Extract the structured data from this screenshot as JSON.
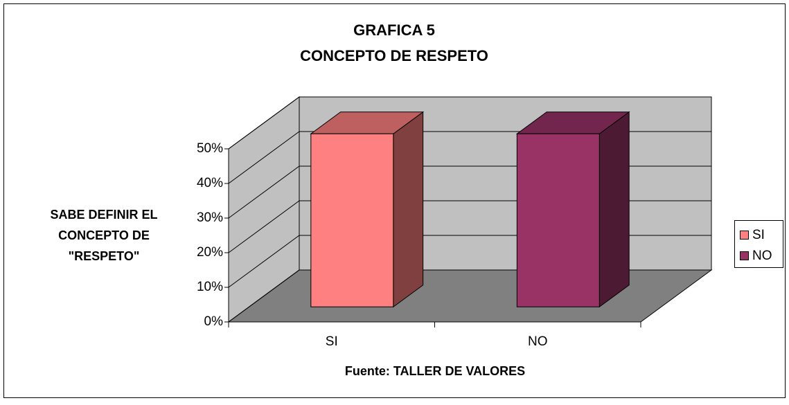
{
  "chart_data": {
    "type": "bar3d",
    "title": "GRAFICA 5",
    "subtitle": "CONCEPTO DE RESPETO",
    "ylabel": [
      "SABE DEFINIR EL",
      "CONCEPTO DE",
      "\"RESPETO\""
    ],
    "xlabel": "Fuente: TALLER DE VALORES",
    "categories": [
      "SI",
      "NO"
    ],
    "series": [
      {
        "name": "SI",
        "color": "#ff8080",
        "values": [
          50,
          null
        ]
      },
      {
        "name": "NO",
        "color": "#993366",
        "values": [
          null,
          50
        ]
      }
    ],
    "ylim": [
      0,
      50
    ],
    "yticks": [
      {
        "value": 0,
        "label": "0%"
      },
      {
        "value": 10,
        "label": "10%"
      },
      {
        "value": 20,
        "label": "20%"
      },
      {
        "value": 30,
        "label": "30%"
      },
      {
        "value": 40,
        "label": "40%"
      },
      {
        "value": 50,
        "label": "50%"
      }
    ],
    "grid": true,
    "legend": "right"
  }
}
